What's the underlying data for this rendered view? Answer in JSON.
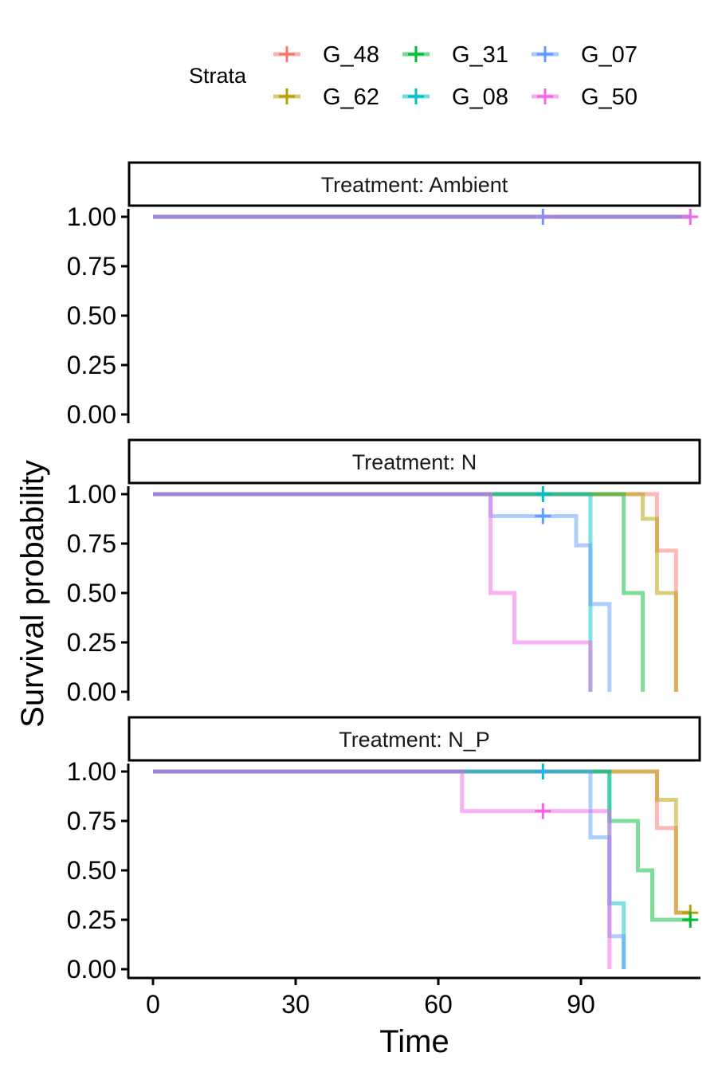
{
  "chart_data": {
    "type": "line",
    "subtype": "kaplan-meier step curves, faceted",
    "xlabel": "Time",
    "ylabel": "Survival probability",
    "xlim": [
      -4,
      114
    ],
    "ylim": [
      0,
      1
    ],
    "xticks": [
      0,
      30,
      60,
      90
    ],
    "xtick_labels": [
      "0",
      "30",
      "60",
      "90"
    ],
    "yticks": [
      0,
      0.25,
      0.5,
      0.75,
      1
    ],
    "ytick_labels": [
      "0.00",
      "0.25",
      "0.50",
      "0.75",
      "1.00"
    ],
    "legend": {
      "title": "Strata",
      "placement": "top",
      "entries": [
        {
          "name": "G_48",
          "color": "#F8766D"
        },
        {
          "name": "G_31",
          "color": "#00BA38"
        },
        {
          "name": "G_07",
          "color": "#619CFF"
        },
        {
          "name": "G_62",
          "color": "#B79F00"
        },
        {
          "name": "G_08",
          "color": "#00BFC4"
        },
        {
          "name": "G_50",
          "color": "#F564E3"
        }
      ]
    },
    "panels": [
      {
        "label": "Treatment: Ambient",
        "series": [
          {
            "name": "G_48",
            "steps": [
              [
                0,
                1
              ],
              [
                113,
                1
              ]
            ],
            "censor": []
          },
          {
            "name": "G_62",
            "steps": [
              [
                0,
                1
              ],
              [
                113,
                1
              ]
            ],
            "censor": []
          },
          {
            "name": "G_31",
            "steps": [
              [
                0,
                1
              ],
              [
                113,
                1
              ]
            ],
            "censor": []
          },
          {
            "name": "G_08",
            "steps": [
              [
                0,
                1
              ],
              [
                113,
                1
              ]
            ],
            "censor": []
          },
          {
            "name": "G_07",
            "steps": [
              [
                0,
                1
              ],
              [
                113,
                1
              ]
            ],
            "censor": [
              [
                82,
                1
              ]
            ]
          },
          {
            "name": "G_50",
            "steps": [
              [
                0,
                1
              ],
              [
                113,
                1
              ]
            ],
            "censor": [
              [
                113,
                1
              ]
            ]
          }
        ]
      },
      {
        "label": "Treatment: N",
        "series": [
          {
            "name": "G_48",
            "steps": [
              [
                0,
                1
              ],
              [
                106,
                0.714
              ],
              [
                110,
                0
              ]
            ],
            "censor": []
          },
          {
            "name": "G_62",
            "steps": [
              [
                0,
                1
              ],
              [
                103,
                0.875
              ],
              [
                106,
                0.5
              ],
              [
                110,
                0
              ]
            ],
            "censor": []
          },
          {
            "name": "G_31",
            "steps": [
              [
                0,
                1
              ],
              [
                99,
                0.5
              ],
              [
                103,
                0
              ]
            ],
            "censor": []
          },
          {
            "name": "G_08",
            "steps": [
              [
                0,
                1
              ],
              [
                92,
                0
              ]
            ],
            "censor": [
              [
                82,
                1
              ]
            ]
          },
          {
            "name": "G_07",
            "steps": [
              [
                0,
                1
              ],
              [
                71,
                0.889
              ],
              [
                89,
                0.741
              ],
              [
                92,
                0.444
              ],
              [
                96,
                0
              ]
            ],
            "censor": [
              [
                82,
                0.889
              ]
            ]
          },
          {
            "name": "G_50",
            "steps": [
              [
                0,
                1
              ],
              [
                71,
                0.5
              ],
              [
                76,
                0.25
              ],
              [
                92,
                0
              ]
            ],
            "censor": []
          }
        ]
      },
      {
        "label": "Treatment: N_P",
        "series": [
          {
            "name": "G_48",
            "steps": [
              [
                0,
                1
              ],
              [
                106,
                0.714
              ],
              [
                110,
                0.286
              ],
              [
                113,
                0.286
              ]
            ],
            "censor": []
          },
          {
            "name": "G_62",
            "steps": [
              [
                0,
                1
              ],
              [
                106,
                0.857
              ],
              [
                110,
                0.286
              ],
              [
                113,
                0.286
              ]
            ],
            "censor": [
              [
                113,
                0.286
              ]
            ]
          },
          {
            "name": "G_31",
            "steps": [
              [
                0,
                1
              ],
              [
                96,
                0.75
              ],
              [
                102,
                0.5
              ],
              [
                105,
                0.25
              ],
              [
                113,
                0.25
              ]
            ],
            "censor": [
              [
                113,
                0.25
              ]
            ]
          },
          {
            "name": "G_08",
            "steps": [
              [
                0,
                1
              ],
              [
                96,
                0.333
              ],
              [
                99,
                0
              ]
            ],
            "censor": [
              [
                82,
                1
              ]
            ]
          },
          {
            "name": "G_07",
            "steps": [
              [
                0,
                1
              ],
              [
                92,
                0.667
              ],
              [
                96,
                0.167
              ],
              [
                99,
                0
              ]
            ],
            "censor": []
          },
          {
            "name": "G_50",
            "steps": [
              [
                0,
                1
              ],
              [
                65,
                0.8
              ],
              [
                96,
                0
              ]
            ],
            "censor": [
              [
                82,
                0.8
              ]
            ]
          }
        ]
      }
    ]
  }
}
